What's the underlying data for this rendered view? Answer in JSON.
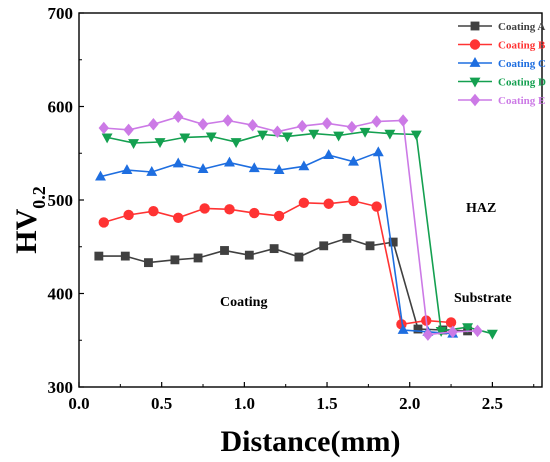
{
  "chart_data": {
    "type": "line",
    "xlabel": "Distance(mm)",
    "ylabel": {
      "main": "HV",
      "sub": "0.2"
    },
    "xlim": [
      0.0,
      2.8
    ],
    "ylim": [
      300,
      700
    ],
    "xticks": [
      "0.0",
      "0.5",
      "1.0",
      "1.5",
      "2.0",
      "2.5"
    ],
    "yticks": [
      "300",
      "400",
      "500",
      "600",
      "700"
    ],
    "grid": false,
    "legend_position": "top-right",
    "annotations": [
      "HAZ",
      "Coating",
      "Substrate"
    ],
    "series": [
      {
        "name": "Coating A",
        "color": "#404040",
        "marker": "square",
        "x": [
          0.12,
          0.28,
          0.42,
          0.58,
          0.72,
          0.88,
          1.03,
          1.18,
          1.33,
          1.48,
          1.62,
          1.76,
          1.9,
          2.05,
          2.2,
          2.35
        ],
        "y": [
          440,
          440,
          433,
          436,
          438,
          446,
          441,
          448,
          439,
          451,
          459,
          451,
          455,
          362,
          361,
          360
        ]
      },
      {
        "name": "Coating B",
        "color": "#ff3333",
        "marker": "circle",
        "x": [
          0.15,
          0.3,
          0.45,
          0.6,
          0.76,
          0.91,
          1.06,
          1.21,
          1.36,
          1.51,
          1.66,
          1.8,
          1.95,
          2.1,
          2.25
        ],
        "y": [
          476,
          484,
          488,
          481,
          491,
          490,
          486,
          483,
          497,
          496,
          499,
          493,
          367,
          371,
          369
        ]
      },
      {
        "name": "Coating C",
        "color": "#1e6ee0",
        "marker": "triangle-up",
        "x": [
          0.13,
          0.29,
          0.44,
          0.6,
          0.75,
          0.91,
          1.06,
          1.21,
          1.36,
          1.51,
          1.66,
          1.81,
          1.96,
          2.11,
          2.26
        ],
        "y": [
          525,
          532,
          530,
          539,
          533,
          540,
          534,
          532,
          536,
          548,
          541,
          551,
          361,
          359,
          357
        ]
      },
      {
        "name": "Coating D",
        "color": "#14a050",
        "marker": "triangle-down",
        "x": [
          0.17,
          0.33,
          0.49,
          0.64,
          0.8,
          0.95,
          1.11,
          1.26,
          1.42,
          1.57,
          1.73,
          1.88,
          2.04,
          2.19,
          2.35,
          2.5
        ],
        "y": [
          567,
          561,
          562,
          567,
          568,
          562,
          570,
          568,
          571,
          569,
          573,
          571,
          570,
          360,
          364,
          357
        ]
      },
      {
        "name": "Coating E",
        "color": "#cc7ae6",
        "marker": "diamond",
        "x": [
          0.15,
          0.3,
          0.45,
          0.6,
          0.75,
          0.9,
          1.05,
          1.2,
          1.35,
          1.5,
          1.65,
          1.8,
          1.96,
          2.11,
          2.26,
          2.41
        ],
        "y": [
          577,
          575,
          581,
          589,
          581,
          585,
          580,
          573,
          579,
          582,
          578,
          584,
          585,
          356,
          359,
          360
        ]
      }
    ]
  }
}
